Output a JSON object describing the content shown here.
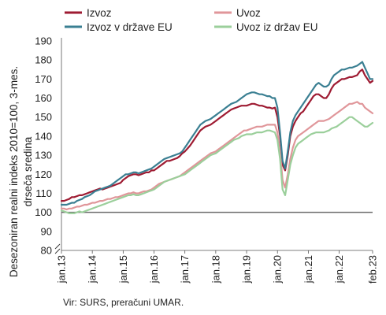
{
  "chart_data": {
    "type": "line",
    "ylabel_line1": "Desezoniran realni indeks 2010=100, 3-mes.",
    "ylabel_line2": "drseča sredina",
    "ylim": [
      80,
      190
    ],
    "yticks": [
      "80",
      "90",
      "100",
      "110",
      "120",
      "130",
      "140",
      "150",
      "160",
      "170",
      "180",
      "190"
    ],
    "xticks": [
      "jan.13",
      "jan.14",
      "jan.15",
      "jan.16",
      "jan.17",
      "jan.18",
      "jan.19",
      "jan.20",
      "jan.21",
      "jan.22",
      "feb.23"
    ],
    "source": "Vir: SURS, preračuni UMAR.",
    "legend": "top",
    "grid": false,
    "reference_line": 100,
    "series": [
      {
        "name": "Izvoz",
        "color": "#9e1b32",
        "values": [
          106,
          106,
          106.5,
          107,
          108,
          108,
          108.5,
          109,
          109,
          109.5,
          110,
          110.5,
          111,
          111.5,
          112,
          112.5,
          112,
          112.5,
          113,
          113.5,
          114,
          114.5,
          115,
          115.5,
          117,
          118,
          119,
          119.5,
          120,
          120,
          119.5,
          120,
          120.5,
          121,
          121,
          122,
          122,
          123,
          124,
          125,
          126,
          127,
          127,
          127.5,
          128,
          128.5,
          129.5,
          131,
          132,
          133.5,
          135,
          137,
          139,
          141,
          143,
          144,
          145,
          145.5,
          146,
          147,
          148,
          149,
          150,
          151,
          152,
          153,
          154,
          154.5,
          155,
          155.5,
          156,
          156,
          156,
          156.5,
          157,
          157,
          156.5,
          156,
          156,
          155.5,
          155,
          155,
          154.5,
          155,
          150,
          140,
          125,
          122,
          130,
          140,
          145,
          148,
          150,
          152,
          153,
          155,
          157,
          159,
          161,
          162,
          162,
          161,
          160,
          160,
          162,
          165,
          167,
          168,
          169,
          170,
          170,
          170.5,
          171,
          171,
          171.5,
          172,
          174,
          175,
          172,
          170,
          168,
          169
        ]
      },
      {
        "name": "Uvoz",
        "color": "#e0969a",
        "values": [
          102,
          102,
          101.5,
          102,
          102,
          102.5,
          103,
          103,
          103.5,
          104,
          104,
          104.5,
          105,
          105,
          105.5,
          106,
          106,
          106.5,
          107,
          107,
          107.5,
          108,
          108,
          108.5,
          109,
          109.5,
          110,
          110,
          110.5,
          110,
          110,
          110.5,
          111,
          111,
          111.5,
          112,
          113,
          114,
          115,
          115.5,
          116,
          116.5,
          117,
          117.5,
          118,
          118.5,
          119,
          120,
          121,
          122,
          123,
          124,
          125,
          126,
          127,
          128,
          129,
          130,
          131,
          131.5,
          132,
          133,
          134,
          135,
          136,
          137,
          138,
          139,
          140,
          141,
          142,
          143,
          143,
          143.5,
          144,
          144.5,
          145,
          145,
          145,
          145.5,
          146,
          146,
          146,
          146,
          142,
          132,
          117,
          113,
          120,
          128,
          134,
          138,
          140,
          141,
          142,
          143,
          144,
          145,
          146,
          147,
          148,
          148,
          148,
          148.5,
          149,
          150,
          151,
          152,
          153,
          154,
          155,
          156,
          157,
          157,
          157.5,
          158,
          157,
          157,
          155,
          154,
          153,
          152
        ]
      },
      {
        "name": "Izvoz v države EU",
        "color": "#3a7f92",
        "values": [
          104,
          104,
          104,
          104.5,
          105,
          105,
          106,
          106.5,
          107,
          108,
          108.5,
          109,
          110,
          111,
          111.5,
          112,
          112.5,
          113,
          113.5,
          114,
          115,
          116,
          117,
          118,
          119,
          120,
          120,
          120.5,
          121,
          121,
          120.5,
          121,
          121.5,
          122,
          122.5,
          123,
          124,
          125,
          126,
          127,
          128,
          128.5,
          129,
          129.5,
          130,
          130.5,
          131,
          132,
          134,
          136,
          138,
          140,
          142,
          144,
          146,
          147,
          148,
          148.5,
          149,
          150,
          151,
          152,
          153,
          154,
          155,
          156,
          157,
          157.5,
          158,
          159,
          160,
          161,
          162,
          162.5,
          163,
          163,
          162.5,
          162,
          162,
          161.5,
          161,
          161,
          160,
          160,
          155,
          142,
          127,
          123,
          132,
          142,
          148,
          151,
          153,
          155,
          157,
          159,
          161,
          163,
          165,
          167,
          168,
          167,
          166,
          166,
          167,
          170,
          172,
          173,
          174,
          175,
          175,
          175.5,
          176,
          176,
          176.5,
          177,
          178,
          179,
          176,
          173,
          170,
          170
        ]
      },
      {
        "name": "Uvoz iz držav EU",
        "color": "#9bcf9b",
        "values": [
          101,
          100.5,
          100,
          99.5,
          99.5,
          99.5,
          100,
          100.5,
          100,
          100.5,
          101,
          101.5,
          102,
          102.5,
          103,
          103.5,
          104,
          104.5,
          105,
          105.5,
          106,
          106.5,
          107,
          107.5,
          108,
          108.5,
          109,
          109,
          109.5,
          109,
          109,
          109.5,
          110,
          110.5,
          111,
          111.5,
          112,
          113,
          114,
          115,
          116,
          116.5,
          117,
          117.5,
          118,
          118.5,
          119,
          119.5,
          120,
          121,
          122,
          123,
          124,
          125,
          126,
          127,
          128,
          129,
          130,
          130.5,
          131,
          132,
          133,
          134,
          135,
          136,
          137,
          138,
          138.5,
          139,
          140,
          140.5,
          141,
          141,
          141,
          141.5,
          142,
          142,
          142,
          142.5,
          143,
          143,
          142.5,
          142,
          138,
          128,
          112,
          109,
          117,
          125,
          130,
          134,
          136,
          137,
          138,
          139,
          140,
          141,
          141.5,
          142,
          142,
          142,
          142,
          142.5,
          143,
          144,
          144.5,
          145,
          146,
          147,
          148,
          149,
          150,
          150,
          149,
          148,
          147,
          146,
          145,
          145,
          146,
          147
        ]
      }
    ]
  }
}
